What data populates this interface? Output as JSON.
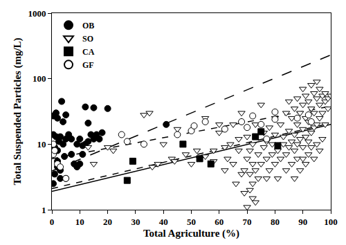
{
  "chart_data": {
    "type": "scatter",
    "x_label": "Total Agriculture (%)",
    "y_label": "Total Suspended Particles (mg/L)",
    "log": "y",
    "grid": false,
    "legend": "top-left",
    "xlim": [
      0,
      100
    ],
    "xticks": [
      0,
      10,
      20,
      30,
      40,
      50,
      60,
      70,
      80,
      90,
      100
    ],
    "ylim": [
      1,
      1000
    ],
    "yticks": [
      1,
      10,
      100,
      1000
    ],
    "series": [
      {
        "name": "OB",
        "color": "#000000",
        "marker": "circle",
        "x": [
          0.5,
          0.5,
          0.5,
          1,
          1,
          1.5,
          1.5,
          2,
          2,
          2,
          2.5,
          3,
          3,
          3.5,
          4,
          4,
          4.5,
          5,
          5,
          5,
          6,
          7,
          7,
          8,
          9,
          9,
          10,
          10,
          11,
          11,
          12,
          12,
          13,
          13,
          14,
          15,
          15,
          16,
          17,
          18,
          20,
          41,
          2,
          3
        ],
        "values": [
          14,
          27,
          2.5,
          9,
          3.5,
          30,
          13,
          25,
          8,
          5.5,
          11,
          13,
          4,
          45,
          22,
          10,
          6.5,
          28,
          12,
          3,
          14,
          12,
          7,
          5,
          10,
          4.5,
          12,
          5,
          9.5,
          7,
          37,
          10,
          21,
          11,
          14,
          12,
          36,
          14,
          12,
          15,
          35,
          20,
          4.5,
          3
        ]
      },
      {
        "name": "SO",
        "color": "#ffffff",
        "marker": "triangle-down",
        "x": [
          13,
          20,
          22,
          33,
          36,
          38,
          43,
          44,
          45,
          48,
          50,
          52,
          53,
          55,
          58,
          58,
          60,
          62,
          62,
          63,
          64,
          65,
          65,
          66,
          67,
          67,
          68,
          68,
          69,
          69,
          70,
          70,
          70,
          71,
          71,
          71,
          72,
          72,
          72,
          72,
          73,
          73,
          73,
          74,
          74,
          75,
          75,
          76,
          76,
          77,
          77,
          77,
          78,
          78,
          79,
          79,
          80,
          80,
          80,
          81,
          81,
          82,
          82,
          83,
          83,
          84,
          84,
          84,
          85,
          85,
          85,
          86,
          86,
          86,
          87,
          87,
          87,
          87,
          88,
          88,
          88,
          88,
          89,
          89,
          89,
          90,
          90,
          90,
          90,
          90,
          91,
          91,
          91,
          91,
          92,
          92,
          92,
          92,
          93,
          93,
          93,
          93,
          94,
          94,
          94,
          94,
          95,
          95,
          95,
          95,
          96,
          96,
          96,
          96,
          97,
          97,
          97,
          98,
          98,
          98,
          99,
          99,
          100,
          60,
          55,
          40,
          35,
          15
        ],
        "values": [
          9,
          9,
          8,
          28,
          4.5,
          5,
          6,
          5.5,
          17,
          7,
          5,
          8,
          6,
          6.5,
          5.5,
          8,
          15,
          4,
          9,
          6,
          10,
          5,
          20,
          2.5,
          12,
          8,
          3.5,
          30,
          1.8,
          4,
          1.1,
          6,
          13,
          2,
          3.5,
          8,
          2.5,
          1.5,
          5,
          10,
          1.3,
          4,
          20,
          3,
          7,
          5,
          40,
          9,
          15,
          3,
          6,
          11,
          4,
          18,
          7,
          10,
          5,
          14,
          25,
          8,
          3,
          6,
          20,
          10,
          13,
          4,
          7,
          30,
          9,
          16,
          45,
          5,
          11,
          25,
          3,
          8,
          14,
          35,
          6,
          10,
          20,
          50,
          4,
          12,
          30,
          6,
          9,
          17,
          40,
          70,
          5,
          13,
          25,
          55,
          7,
          11,
          22,
          45,
          9,
          15,
          35,
          80,
          6,
          18,
          30,
          60,
          10,
          20,
          50,
          90,
          8,
          25,
          40,
          70,
          12,
          30,
          55,
          20,
          45,
          60,
          50,
          35,
          55,
          20,
          25,
          10,
          30,
          5
        ]
      },
      {
        "name": "CA",
        "color": "#000000",
        "marker": "square",
        "x": [
          27,
          29,
          47,
          53,
          57,
          73,
          75,
          81
        ],
        "values": [
          2.8,
          5.5,
          10,
          6,
          5,
          13,
          15.5,
          9.5
        ]
      },
      {
        "name": "GF",
        "color": "#ffffff",
        "marker": "circle",
        "x": [
          0.5,
          0.5,
          1,
          2,
          3,
          5,
          25,
          27,
          33,
          45,
          50,
          51,
          55,
          62,
          68,
          70,
          72,
          75,
          77,
          80,
          80,
          88,
          92,
          93
        ],
        "values": [
          10,
          7,
          8,
          5,
          4.5,
          3,
          14,
          11,
          10,
          14,
          16,
          19,
          22,
          17,
          22,
          18,
          27,
          20,
          12,
          31,
          24,
          25,
          28,
          22
        ]
      },
      {
        "type": "line",
        "color": "#000000",
        "line_style": "longdash",
        "x": [
          0,
          100
        ],
        "values": [
          3.9,
          230
        ]
      },
      {
        "type": "line",
        "color": "#000000",
        "line_style": "dash",
        "x": [
          0,
          100
        ],
        "values": [
          6,
          38
        ]
      },
      {
        "type": "line",
        "color": "#000000",
        "line_style": "dash",
        "x": [
          0,
          100
        ],
        "values": [
          2.1,
          21
        ]
      },
      {
        "type": "line",
        "color": "#000000",
        "line_style": "solid",
        "x": [
          0,
          100
        ],
        "values": [
          1.9,
          20
        ]
      }
    ]
  }
}
